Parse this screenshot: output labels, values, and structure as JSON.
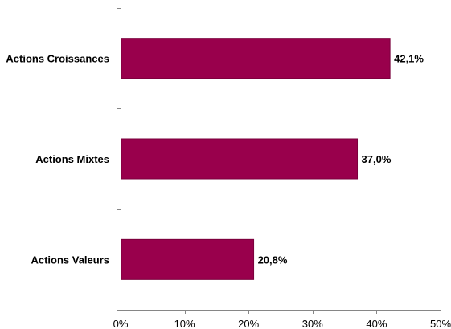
{
  "chart_data": {
    "type": "bar",
    "orientation": "horizontal",
    "title": "",
    "xlabel": "",
    "ylabel": "",
    "categories": [
      "Actions Croissances",
      "Actions Mixtes",
      "Actions Valeurs"
    ],
    "values": [
      42.1,
      37.0,
      20.8
    ],
    "value_labels": [
      "42,1%",
      "37,0%",
      "20,8%"
    ],
    "xlim": [
      0,
      50
    ],
    "x_ticks": [
      0,
      10,
      20,
      30,
      40,
      50
    ],
    "x_tick_labels": [
      "0%",
      "10%",
      "20%",
      "30%",
      "40%",
      "50%"
    ],
    "grid": false,
    "legend": "none",
    "bar_color": "#99004C",
    "bar_border_color": "#7A003C"
  }
}
